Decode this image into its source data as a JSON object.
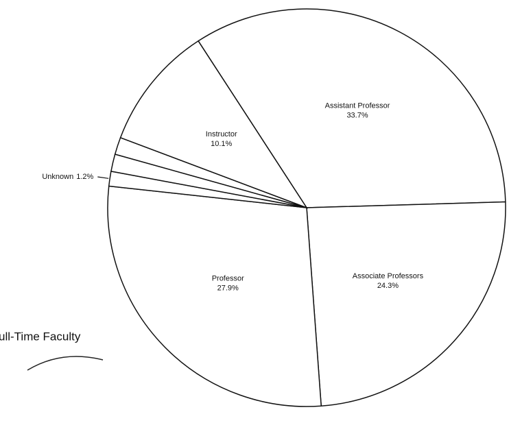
{
  "chart_data": {
    "type": "pie",
    "title": "ull-Time Faculty",
    "categories": [
      "Assistant Professor",
      "Associate Professors",
      "Professor",
      "Unknown",
      null,
      null,
      "Instructor"
    ],
    "values": [
      33.7,
      24.3,
      27.9,
      1.2,
      1.4,
      1.4,
      10.1
    ],
    "value_labels": [
      "33.7%",
      "24.3%",
      "27.9%",
      "1.2%",
      null,
      null,
      "10.1%"
    ],
    "color": "#ffffff"
  }
}
